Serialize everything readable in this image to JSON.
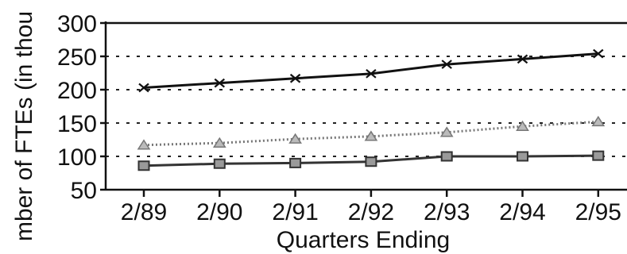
{
  "chart_data": {
    "type": "line",
    "title": "",
    "xlabel": "Quarters Ending",
    "ylabel": "mber of FTEs (in thou",
    "categories": [
      "2/89",
      "2/90",
      "2/91",
      "2/92",
      "2/93",
      "2/94",
      "2/95"
    ],
    "ylim": [
      50,
      300
    ],
    "yticks": [
      50,
      100,
      150,
      200,
      250,
      300
    ],
    "grid": "horizontal-dotted",
    "legend": "none",
    "series": [
      {
        "marker": "x",
        "color": "#111111",
        "line_style": "solid",
        "values": [
          203,
          210,
          217,
          224,
          238,
          246,
          254
        ]
      },
      {
        "marker": "triangle",
        "color": "#777777",
        "line_style": "dotted",
        "values": [
          117,
          120,
          126,
          130,
          136,
          145,
          152
        ]
      },
      {
        "marker": "square",
        "color": "#333333",
        "line_style": "solid",
        "values": [
          86,
          89,
          90,
          92,
          100,
          100,
          101
        ]
      }
    ]
  }
}
